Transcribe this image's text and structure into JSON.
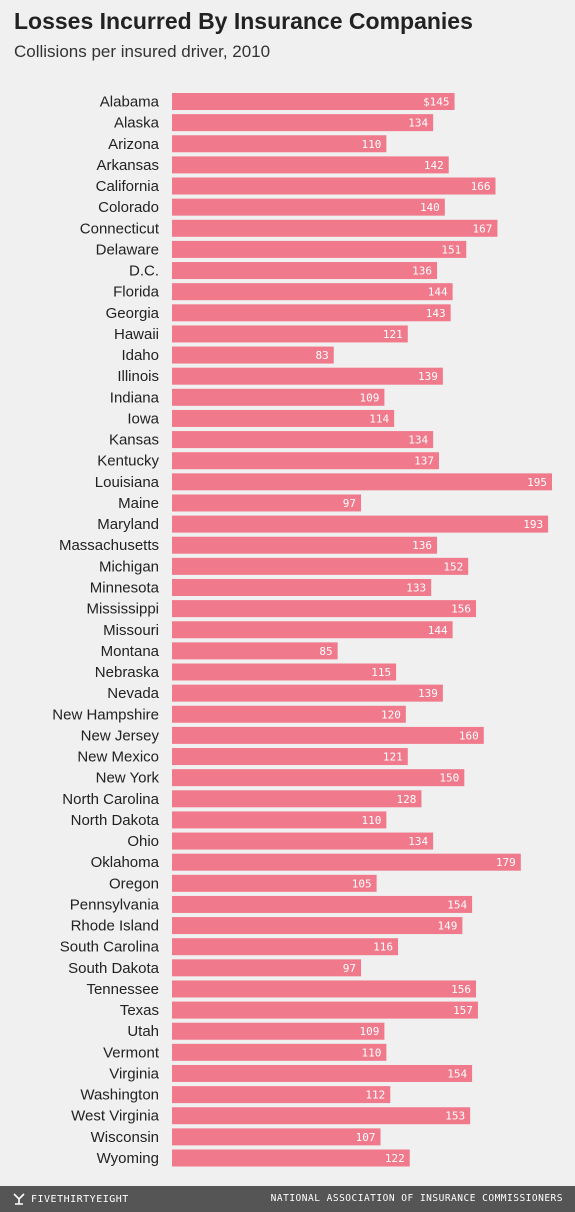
{
  "chart_data": {
    "type": "bar",
    "orientation": "horizontal",
    "title": "Losses Incurred By Insurance Companies",
    "subtitle": "Collisions per insured driver, 2010",
    "value_prefix_first": "$",
    "bar_color": "#f07a8c",
    "xlim": [
      0,
      200
    ],
    "grid": false,
    "categories": [
      "Alabama",
      "Alaska",
      "Arizona",
      "Arkansas",
      "California",
      "Colorado",
      "Connecticut",
      "Delaware",
      "D.C.",
      "Florida",
      "Georgia",
      "Hawaii",
      "Idaho",
      "Illinois",
      "Indiana",
      "Iowa",
      "Kansas",
      "Kentucky",
      "Louisiana",
      "Maine",
      "Maryland",
      "Massachusetts",
      "Michigan",
      "Minnesota",
      "Mississippi",
      "Missouri",
      "Montana",
      "Nebraska",
      "Nevada",
      "New Hampshire",
      "New Jersey",
      "New Mexico",
      "New York",
      "North Carolina",
      "North Dakota",
      "Ohio",
      "Oklahoma",
      "Oregon",
      "Pennsylvania",
      "Rhode Island",
      "South Carolina",
      "South Dakota",
      "Tennessee",
      "Texas",
      "Utah",
      "Vermont",
      "Virginia",
      "Washington",
      "West Virginia",
      "Wisconsin",
      "Wyoming"
    ],
    "values": [
      145,
      134,
      110,
      142,
      166,
      140,
      167,
      151,
      136,
      144,
      143,
      121,
      83,
      139,
      109,
      114,
      134,
      137,
      195,
      97,
      193,
      136,
      152,
      133,
      156,
      144,
      85,
      115,
      139,
      120,
      160,
      121,
      150,
      128,
      110,
      134,
      179,
      105,
      154,
      149,
      116,
      97,
      156,
      157,
      109,
      110,
      154,
      112,
      153,
      107,
      122
    ]
  },
  "footer": {
    "brand": "FIVETHIRTYEIGHT",
    "brand_icon": "fivethirtyeight-logo-icon",
    "source": "NATIONAL ASSOCIATION OF INSURANCE COMMISSIONERS"
  }
}
